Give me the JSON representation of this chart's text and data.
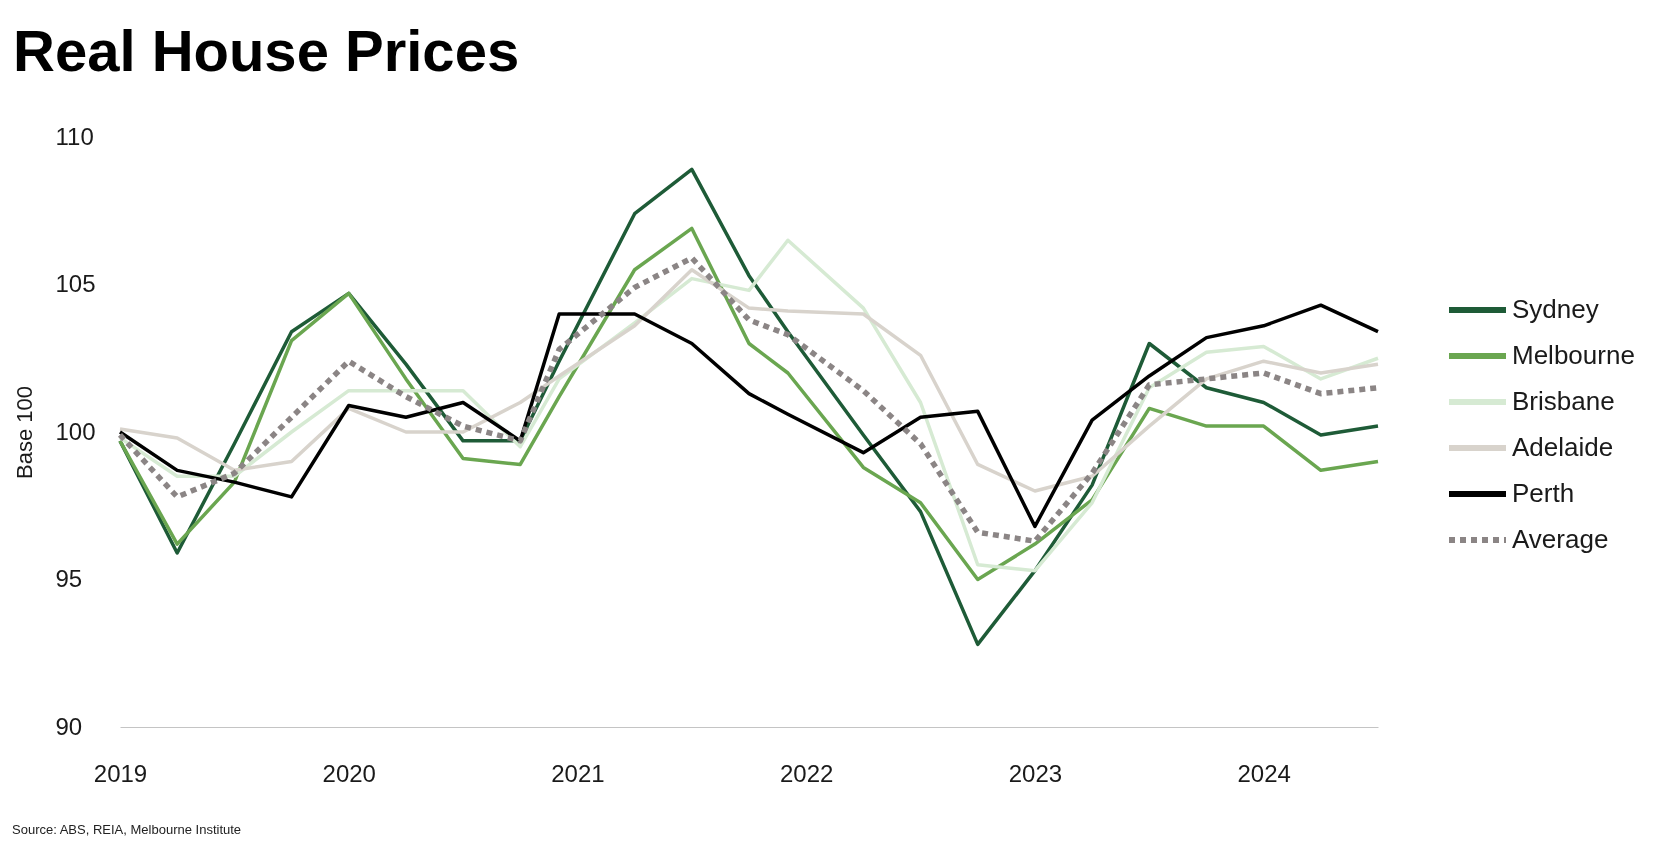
{
  "chart_data": {
    "type": "line",
    "title": "Real House Prices",
    "ylabel": "Base 100",
    "annotations": [
      "Source: ABS, REIA, Melbourne Institute"
    ],
    "x": [
      2019,
      2019.25,
      2019.5,
      2019.75,
      2020,
      2020.25,
      2020.5,
      2020.75,
      2020.92,
      2021.25,
      2021.5,
      2021.75,
      2021.92,
      2022.25,
      2022.5,
      2022.75,
      2023,
      2023.25,
      2023.5,
      2023.75,
      2024,
      2024.25,
      2024.5
    ],
    "series": [
      {
        "name": "Sydney",
        "color": "#1e5b37",
        "line_style": "solid",
        "values": [
          99.7,
          95.9,
          99.6,
          103.4,
          104.7,
          102.3,
          99.7,
          99.7,
          102.4,
          107.4,
          108.9,
          105.3,
          103.4,
          99.9,
          97.3,
          92.8,
          95.3,
          98.2,
          103.0,
          101.5,
          101.0,
          99.9,
          100.2
        ]
      },
      {
        "name": "Melbourne",
        "color": "#6aa650",
        "line_style": "solid",
        "values": [
          99.7,
          96.2,
          98.3,
          103.1,
          104.7,
          101.8,
          99.1,
          98.9,
          101.2,
          105.5,
          106.9,
          103.0,
          102.0,
          98.8,
          97.6,
          95.0,
          96.2,
          97.7,
          100.8,
          100.2,
          100.2,
          98.7,
          99.0
        ]
      },
      {
        "name": "Brisbane",
        "color": "#d6ead3",
        "line_style": "solid",
        "values": [
          99.8,
          98.5,
          98.5,
          100.0,
          101.4,
          101.4,
          101.4,
          99.5,
          101.8,
          103.7,
          105.2,
          104.8,
          106.5,
          104.2,
          101.0,
          95.5,
          95.3,
          97.6,
          101.5,
          102.7,
          102.9,
          101.8,
          102.5
        ]
      },
      {
        "name": "Adelaide",
        "color": "#d8d3cc",
        "line_style": "solid",
        "values": [
          100.1,
          99.8,
          98.7,
          99.0,
          100.8,
          100.0,
          100.0,
          101.0,
          101.9,
          103.6,
          105.5,
          104.2,
          104.1,
          104.0,
          102.6,
          98.9,
          98.0,
          98.5,
          100.2,
          101.8,
          102.4,
          102.0,
          102.3
        ]
      },
      {
        "name": "Perth",
        "color": "#000000",
        "line_style": "solid",
        "values": [
          100.0,
          98.7,
          98.3,
          97.8,
          100.9,
          100.5,
          101.0,
          99.7,
          104.0,
          104.0,
          103.0,
          101.3,
          100.6,
          99.3,
          100.5,
          100.7,
          96.8,
          100.4,
          101.9,
          103.2,
          103.6,
          104.3,
          103.4
        ]
      },
      {
        "name": "Average",
        "color": "#8b8585",
        "line_style": "dotted",
        "values": [
          99.9,
          97.8,
          98.6,
          100.5,
          102.4,
          101.2,
          100.2,
          99.7,
          102.8,
          104.9,
          105.9,
          103.8,
          103.3,
          101.4,
          99.6,
          96.6,
          96.3,
          98.6,
          101.6,
          101.8,
          102.0,
          101.3,
          101.5
        ]
      }
    ],
    "xlim": [
      2019,
      2024.5
    ],
    "xticks": [
      2019,
      2020,
      2021,
      2022,
      2023,
      2024
    ],
    "ylim": [
      90,
      110
    ],
    "yticks": [
      90,
      95,
      100,
      105,
      110
    ],
    "legend": "right"
  }
}
